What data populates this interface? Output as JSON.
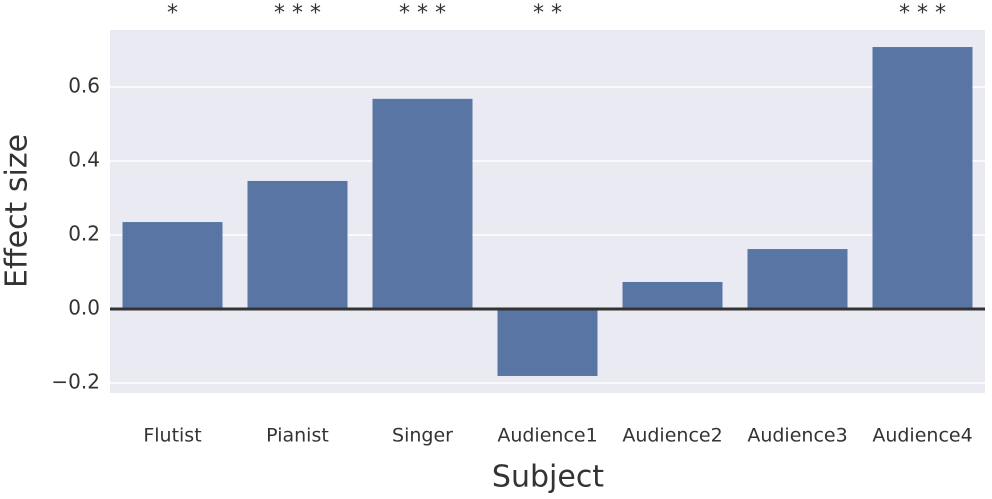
{
  "chart_data": {
    "type": "bar",
    "categories": [
      "Flutist",
      "Pianist",
      "Singer",
      "Audience1",
      "Audience2",
      "Audience3",
      "Audience4"
    ],
    "values": [
      0.235,
      0.346,
      0.568,
      -0.181,
      0.073,
      0.162,
      0.708
    ],
    "annotations": [
      "*",
      "* * *",
      "* * *",
      "* *",
      null,
      null,
      "* * *"
    ],
    "color": "#5875a4",
    "xlabel": "Subject",
    "ylabel": "Effect size",
    "ylim": [
      -0.227,
      0.754
    ],
    "yticks": [
      {
        "value": -0.2,
        "label": "−0.2"
      },
      {
        "value": 0,
        "label": "0.0"
      },
      0.2,
      0.4,
      0.6
    ],
    "grid": true
  }
}
